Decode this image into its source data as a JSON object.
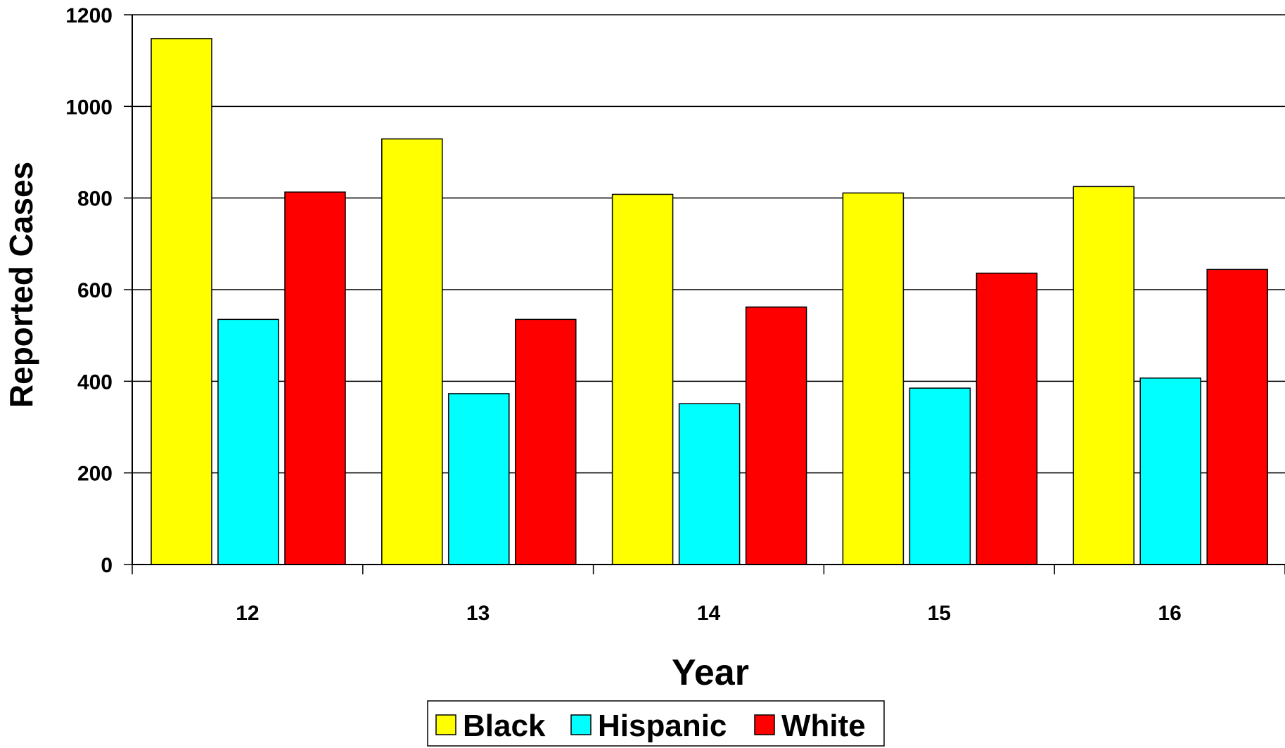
{
  "chart_data": {
    "type": "bar",
    "xlabel": "Year",
    "ylabel": "Reported Cases",
    "categories": [
      "12",
      "13",
      "14",
      "15",
      "16"
    ],
    "series": [
      {
        "name": "Black",
        "color": "#ffff00",
        "values": [
          1148,
          929,
          808,
          811,
          825
        ]
      },
      {
        "name": "Hispanic",
        "color": "#00ffff",
        "values": [
          535,
          373,
          351,
          385,
          407
        ]
      },
      {
        "name": "White",
        "color": "#ff0000",
        "values": [
          813,
          535,
          562,
          636,
          644
        ]
      }
    ],
    "ylim": [
      0,
      1200
    ],
    "yticks": [
      0,
      200,
      400,
      600,
      800,
      1000,
      1200
    ],
    "grid": true,
    "legend_position": "bottom"
  }
}
